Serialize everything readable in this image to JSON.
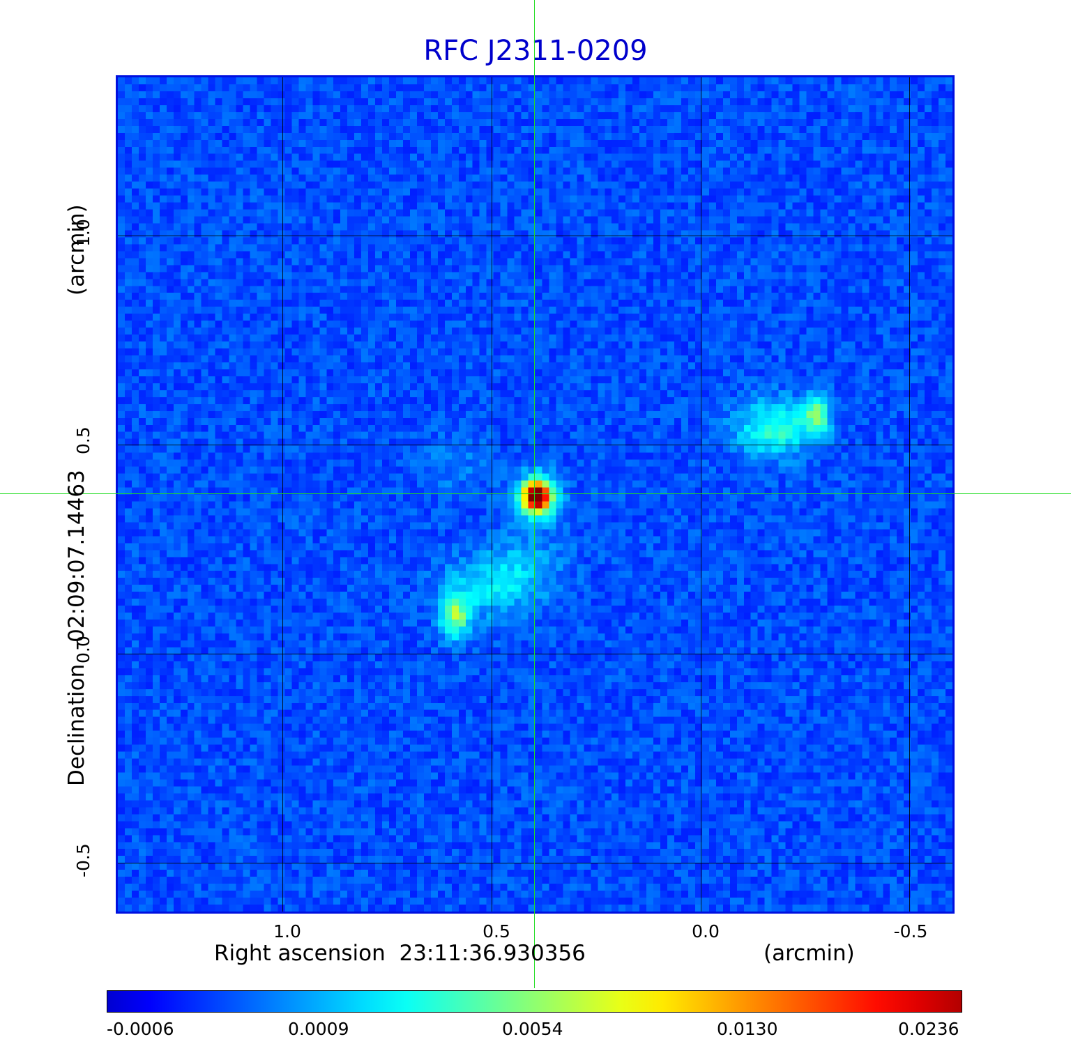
{
  "title": "RFC J2311-0209",
  "x_axis": {
    "label": "Right ascension  23:11:36.930356",
    "unit": "(arcmin)",
    "ticks": [
      "1.0",
      "0.5",
      "0.0",
      "-0.5"
    ]
  },
  "y_axis": {
    "label": "Declination  -02:09:07.14463",
    "unit": "(arcmin)",
    "ticks": [
      "1.0",
      "0.5",
      "0.0",
      "-0.5"
    ]
  },
  "colorbar": {
    "colormap": "jet",
    "ticks": [
      "-0.0006",
      "0.0009",
      "0.0054",
      "0.0130",
      "0.0236"
    ]
  },
  "crosshair_color": "#22dd22",
  "colors": {
    "title": "#0000cc",
    "background_map": "#1e5ff0"
  }
}
